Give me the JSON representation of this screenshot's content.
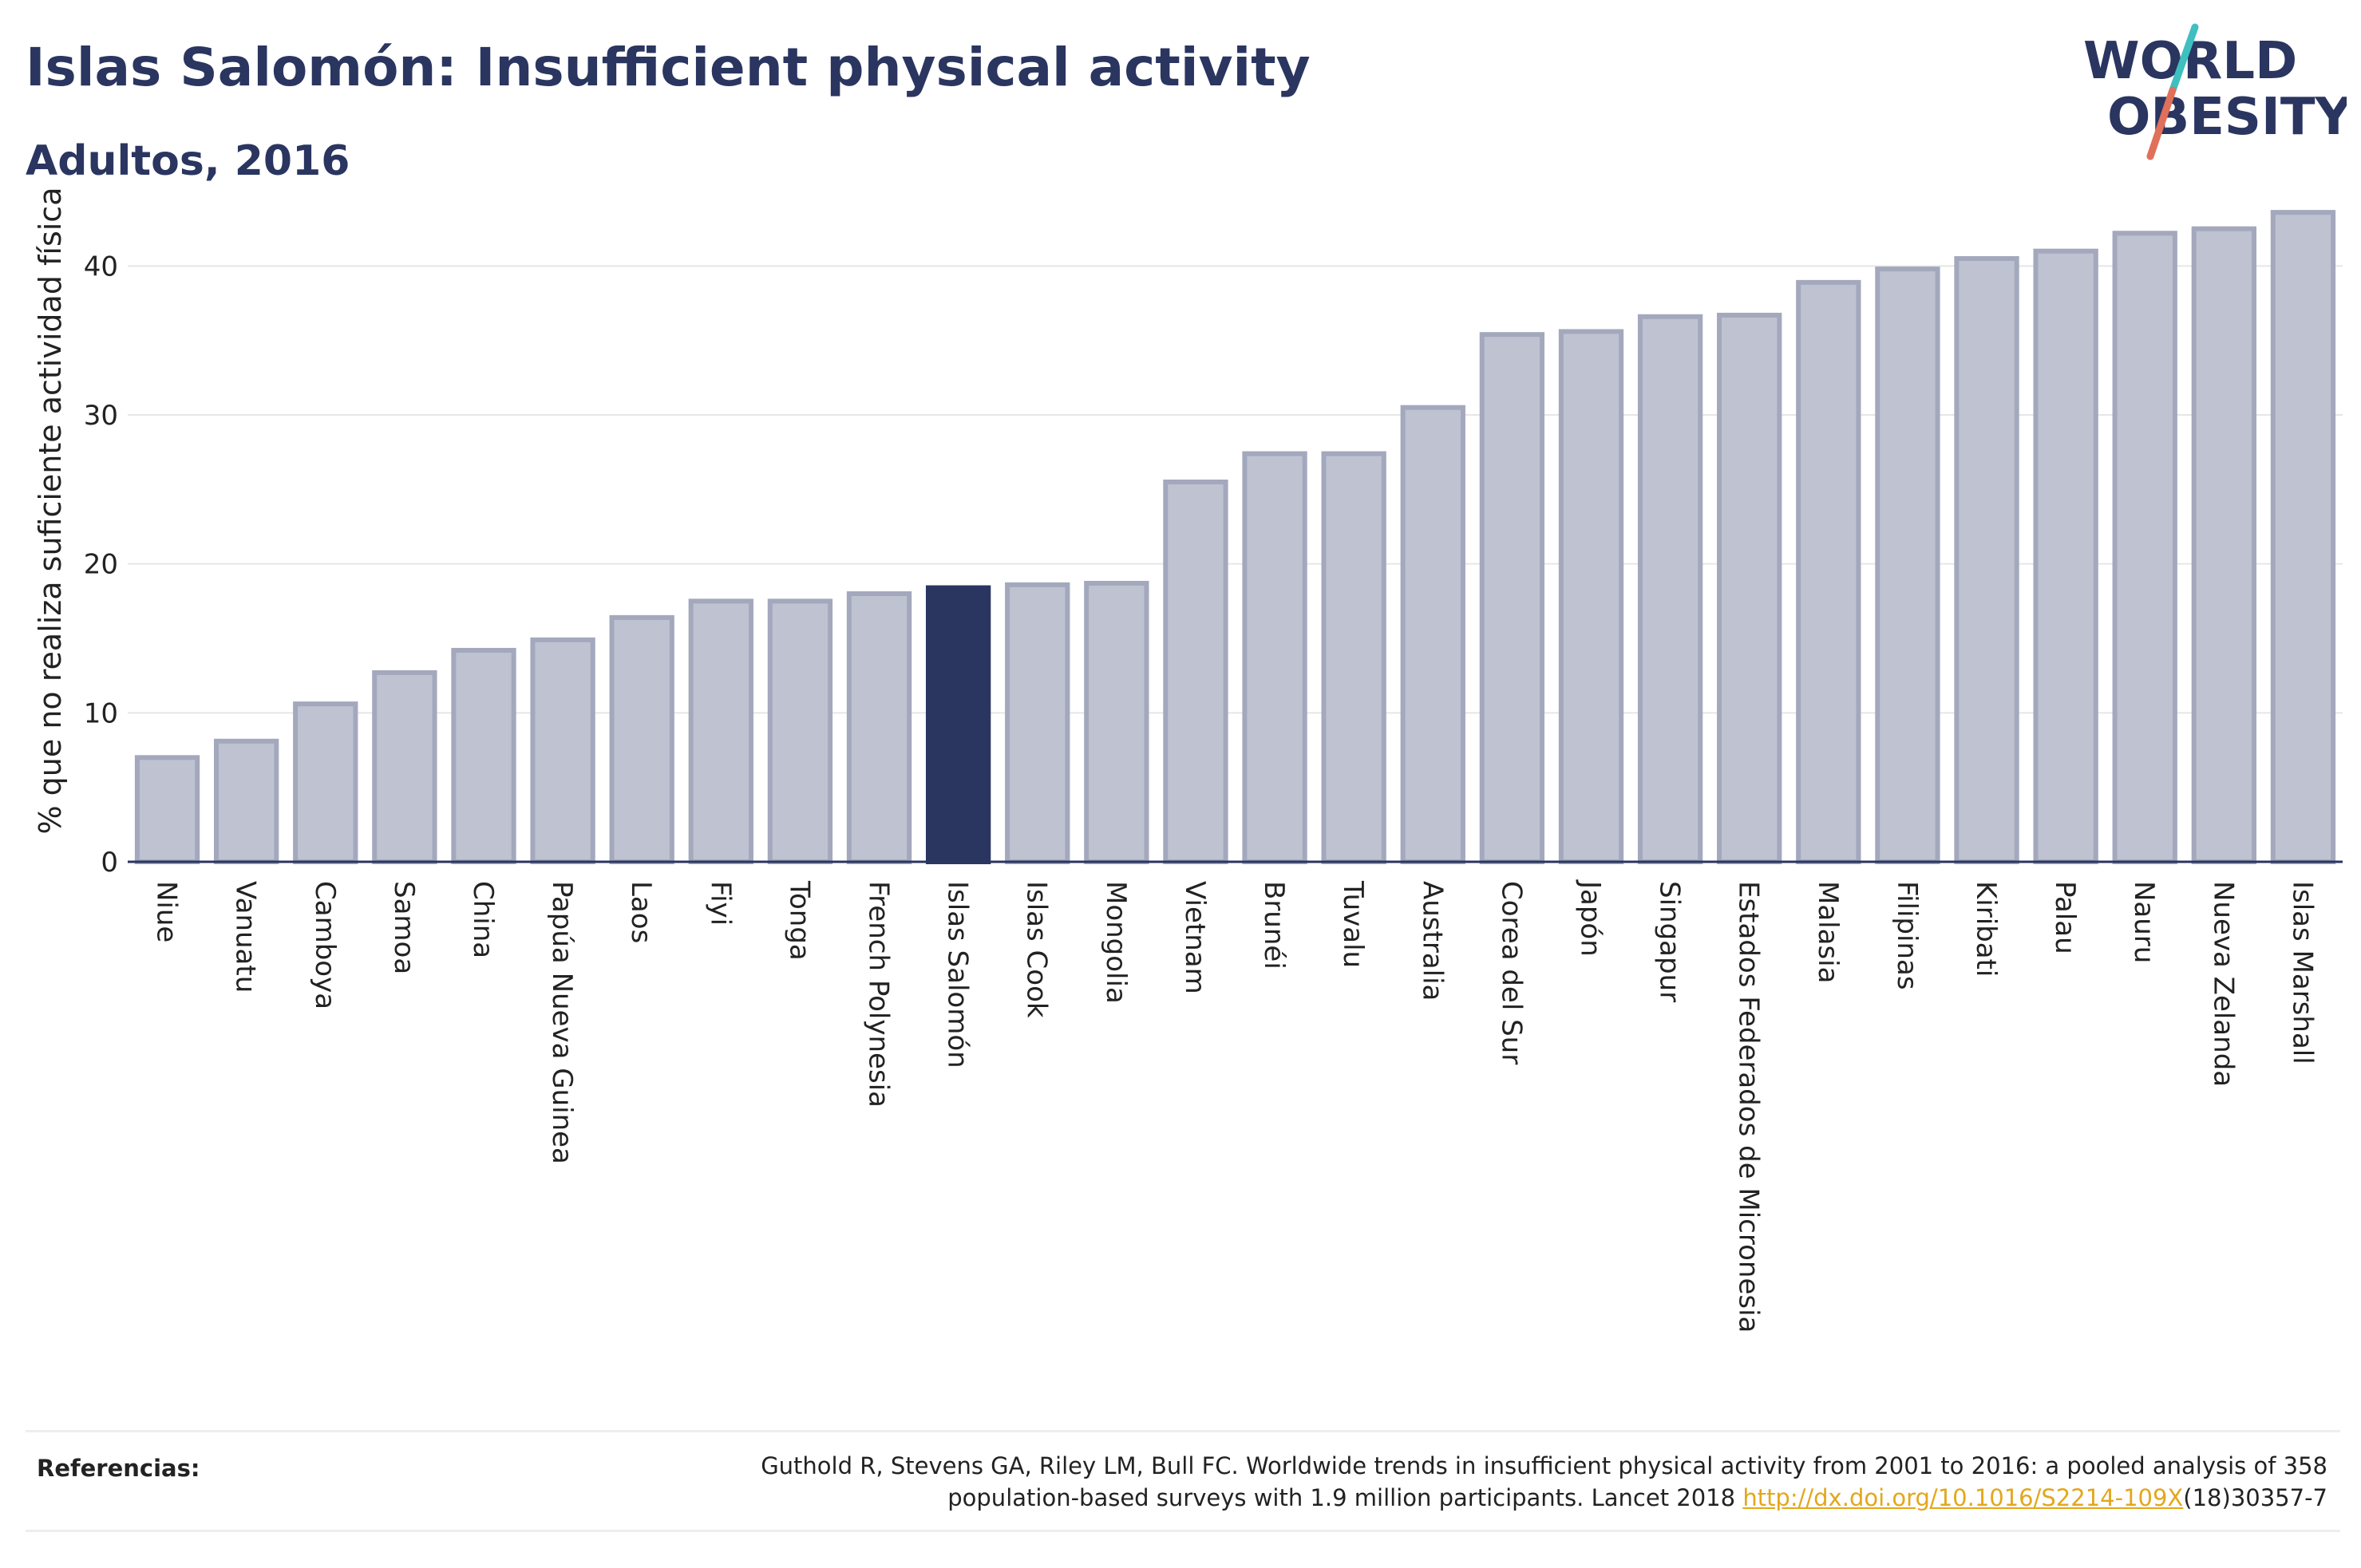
{
  "header": {
    "title": "Islas Salomón: Insufficient physical activity",
    "subtitle": "Adultos, 2016"
  },
  "logo": {
    "line1": "WORLD",
    "line2": "OBESITY",
    "slash_colors": [
      "#3fbfbf",
      "#e0705a"
    ]
  },
  "chart_data": {
    "type": "bar",
    "ylabel": "% que no realiza suficiente actividad física",
    "ylim": [
      0,
      45
    ],
    "yticks": [
      0,
      10,
      20,
      30,
      40
    ],
    "grid": true,
    "highlight": "Islas Salomón",
    "highlight_color": "#2a3560",
    "bar_color": "#bfc2d0",
    "bar_border_color": "#a3a8bd",
    "categories": [
      "Niue",
      "Vanuatu",
      "Camboya",
      "Samoa",
      "China",
      "Papúa Nueva Guinea",
      "Laos",
      "Fiyi",
      "Tonga",
      "French Polynesia",
      "Islas Salomón",
      "Islas Cook",
      "Mongolia",
      "Vietnam",
      "Brunéi",
      "Tuvalu",
      "Australia",
      "Corea del Sur",
      "Japón",
      "Singapur",
      "Estados Federados de Micronesia",
      "Malasia",
      "Filipinas",
      "Kiribati",
      "Palau",
      "Nauru",
      "Nueva Zelanda",
      "Islas Marshall"
    ],
    "values": [
      7.0,
      8.1,
      10.6,
      12.7,
      14.2,
      14.9,
      16.4,
      17.5,
      17.5,
      18.0,
      18.4,
      18.6,
      18.7,
      25.5,
      27.4,
      27.4,
      30.5,
      35.4,
      35.6,
      36.6,
      36.7,
      38.9,
      39.8,
      40.5,
      41.0,
      42.2,
      42.5,
      43.6
    ]
  },
  "references": {
    "label": "Referencias:",
    "text_line1": "Guthold R, Stevens GA, Riley LM, Bull FC. Worldwide trends in insufficient physical activity from 2001 to 2016: a pooled analysis of 358",
    "text_line2_prefix": "population-based surveys with 1.9 million participants. Lancet 2018 ",
    "link": "http://dx.doi.org/10.1016/S2214-109X",
    "text_line2_suffix": "(18)30357-7"
  }
}
